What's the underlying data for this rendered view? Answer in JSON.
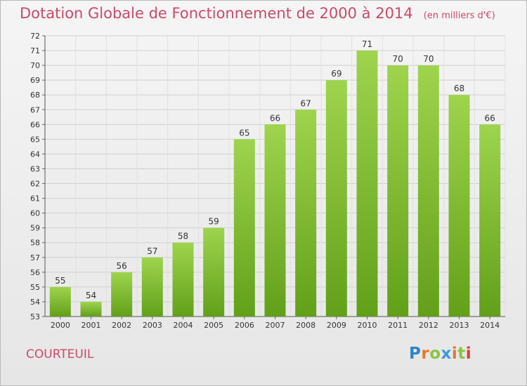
{
  "header": {
    "title": "Dotation Globale de Fonctionnement de 2000 à 2014",
    "unit": "(en milliers d'€)"
  },
  "footer": {
    "commune": "COURTEUIL",
    "logo": "Proxiti"
  },
  "colors": {
    "title": "#c94a6a",
    "bar_top": "#9ed44e",
    "bar_bottom": "#62a019",
    "logo_letters": [
      "#2f84c6",
      "#e8762a",
      "#8ac43f",
      "#3a9ad9",
      "#e8762a",
      "#8ac43f",
      "#e03a3a"
    ]
  },
  "chart_data": {
    "type": "bar",
    "title": "Dotation Globale de Fonctionnement de 2000 à 2014",
    "subtitle": "(en milliers d'€)",
    "categories": [
      "2000",
      "2001",
      "2002",
      "2003",
      "2004",
      "2005",
      "2006",
      "2007",
      "2008",
      "2009",
      "2010",
      "2011",
      "2012",
      "2013",
      "2014"
    ],
    "values": [
      55,
      54,
      56,
      57,
      58,
      59,
      65,
      66,
      67,
      69,
      71,
      70,
      70,
      68,
      66
    ],
    "ylim": [
      53,
      72
    ],
    "yticks": [
      53,
      54,
      55,
      56,
      57,
      58,
      59,
      60,
      61,
      62,
      63,
      64,
      65,
      66,
      67,
      68,
      69,
      70,
      71,
      72
    ],
    "grid": true,
    "xlabel": "",
    "ylabel": ""
  }
}
